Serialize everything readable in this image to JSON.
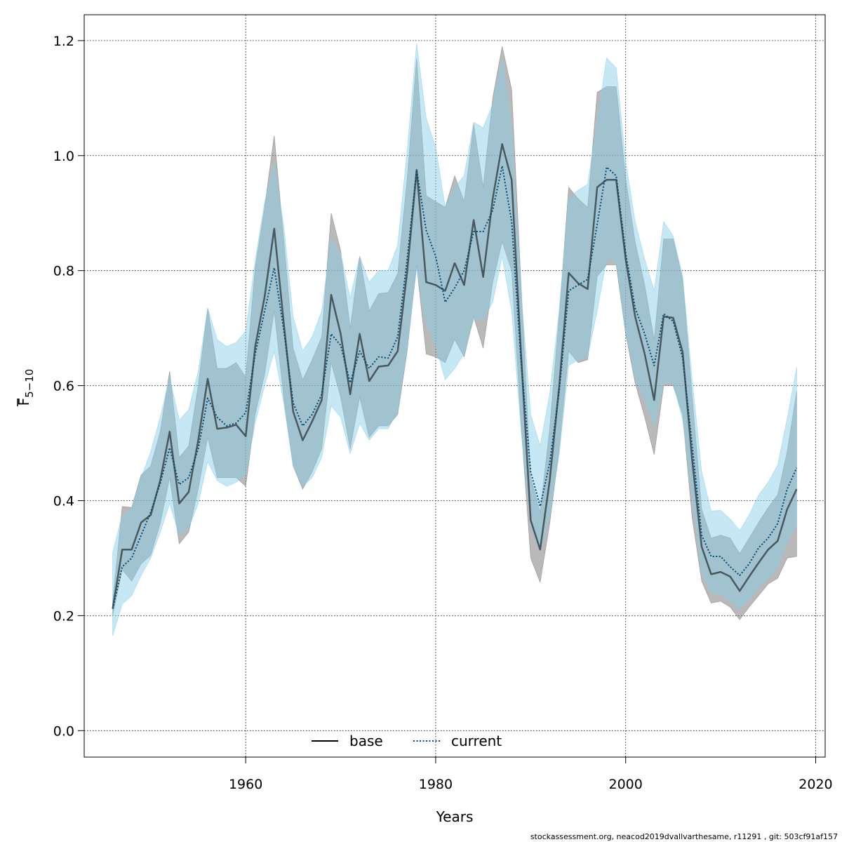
{
  "chart_data": {
    "type": "area",
    "xlabel": "Years",
    "ylabel": "F",
    "ylabel_subscript": "5−10",
    "xlim": [
      1943,
      2021
    ],
    "ylim": [
      -0.046,
      1.245
    ],
    "x_ticks": [
      1960,
      1980,
      2000,
      2020
    ],
    "y_ticks": [
      0.0,
      0.2,
      0.4,
      0.6,
      0.8,
      1.0,
      1.2
    ],
    "x_tick_labels": [
      "1960",
      "1980",
      "2000",
      "2020"
    ],
    "y_tick_labels": [
      "0.0",
      "0.2",
      "0.4",
      "0.6",
      "0.8",
      "1.0",
      "1.2"
    ],
    "grid": true,
    "legend_position": "bottom-center",
    "x": [
      1946,
      1947,
      1948,
      1949,
      1950,
      1951,
      1952,
      1953,
      1954,
      1955,
      1956,
      1957,
      1958,
      1959,
      1960,
      1961,
      1962,
      1963,
      1964,
      1965,
      1966,
      1967,
      1968,
      1969,
      1970,
      1971,
      1972,
      1973,
      1974,
      1975,
      1976,
      1977,
      1978,
      1979,
      1980,
      1981,
      1982,
      1983,
      1984,
      1985,
      1986,
      1987,
      1988,
      1989,
      1990,
      1991,
      1992,
      1993,
      1994,
      1995,
      1996,
      1997,
      1998,
      1999,
      2000,
      2001,
      2002,
      2003,
      2004,
      2005,
      2006,
      2007,
      2008,
      2009,
      2010,
      2011,
      2012,
      2013,
      2014,
      2015,
      2016,
      2017,
      2018
    ],
    "series": [
      {
        "name": "base",
        "line_color": "#000000",
        "band_color": "#808080",
        "line_style": "solid",
        "values": [
          0.212,
          0.315,
          0.315,
          0.362,
          0.375,
          0.435,
          0.52,
          0.395,
          0.415,
          0.505,
          0.612,
          0.525,
          0.527,
          0.532,
          0.512,
          0.668,
          0.755,
          0.873,
          0.71,
          0.555,
          0.505,
          0.538,
          0.575,
          0.758,
          0.69,
          0.585,
          0.69,
          0.608,
          0.633,
          0.635,
          0.66,
          0.798,
          0.975,
          0.78,
          0.775,
          0.765,
          0.813,
          0.775,
          0.888,
          0.789,
          0.925,
          1.02,
          0.958,
          0.65,
          0.366,
          0.315,
          0.435,
          0.598,
          0.796,
          0.778,
          0.768,
          0.945,
          0.958,
          0.958,
          0.82,
          0.72,
          0.655,
          0.575,
          0.72,
          0.718,
          0.658,
          0.47,
          0.32,
          0.272,
          0.276,
          0.268,
          0.243,
          0.268,
          0.292,
          0.315,
          0.33,
          0.385,
          0.42
        ],
        "lower": [
          0.2,
          0.28,
          0.26,
          0.29,
          0.305,
          0.36,
          0.44,
          0.325,
          0.345,
          0.42,
          0.51,
          0.44,
          0.44,
          0.44,
          0.425,
          0.55,
          0.62,
          0.73,
          0.58,
          0.46,
          0.42,
          0.45,
          0.49,
          0.64,
          0.58,
          0.49,
          0.58,
          0.51,
          0.53,
          0.53,
          0.55,
          0.66,
          0.81,
          0.655,
          0.65,
          0.64,
          0.68,
          0.65,
          0.72,
          0.665,
          0.78,
          0.85,
          0.8,
          0.53,
          0.3,
          0.258,
          0.36,
          0.49,
          0.66,
          0.64,
          0.645,
          0.79,
          0.81,
          0.81,
          0.69,
          0.605,
          0.545,
          0.48,
          0.6,
          0.6,
          0.55,
          0.37,
          0.26,
          0.222,
          0.225,
          0.215,
          0.193,
          0.215,
          0.235,
          0.255,
          0.265,
          0.3,
          0.303
        ],
        "upper": [
          0.225,
          0.39,
          0.388,
          0.445,
          0.46,
          0.52,
          0.625,
          0.475,
          0.495,
          0.6,
          0.735,
          0.63,
          0.63,
          0.64,
          0.615,
          0.805,
          0.91,
          1.035,
          0.855,
          0.665,
          0.61,
          0.645,
          0.685,
          0.9,
          0.835,
          0.7,
          0.825,
          0.73,
          0.76,
          0.762,
          0.795,
          0.96,
          1.17,
          0.93,
          0.92,
          0.91,
          0.965,
          0.92,
          1.055,
          0.945,
          1.1,
          1.19,
          1.115,
          0.77,
          0.44,
          0.38,
          0.525,
          0.72,
          0.945,
          0.925,
          0.91,
          1.11,
          1.12,
          1.12,
          0.96,
          0.85,
          0.775,
          0.68,
          0.855,
          0.855,
          0.785,
          0.58,
          0.385,
          0.335,
          0.34,
          0.335,
          0.308,
          0.335,
          0.362,
          0.388,
          0.41,
          0.485,
          0.59
        ]
      },
      {
        "name": "current",
        "line_color": "#004a75",
        "band_color": "#87ceeb",
        "line_style": "dotted",
        "values": [
          0.212,
          0.285,
          0.3,
          0.34,
          0.38,
          0.43,
          0.492,
          0.428,
          0.44,
          0.49,
          0.578,
          0.545,
          0.53,
          0.535,
          0.553,
          0.655,
          0.73,
          0.805,
          0.698,
          0.57,
          0.53,
          0.55,
          0.585,
          0.69,
          0.67,
          0.605,
          0.66,
          0.63,
          0.65,
          0.648,
          0.685,
          0.82,
          0.975,
          0.87,
          0.825,
          0.745,
          0.77,
          0.8,
          0.868,
          0.868,
          0.905,
          0.982,
          0.885,
          0.64,
          0.45,
          0.39,
          0.465,
          0.59,
          0.765,
          0.775,
          0.785,
          0.88,
          0.98,
          0.965,
          0.83,
          0.735,
          0.69,
          0.635,
          0.725,
          0.712,
          0.648,
          0.495,
          0.34,
          0.303,
          0.303,
          0.285,
          0.27,
          0.29,
          0.318,
          0.335,
          0.36,
          0.42,
          0.457
        ],
        "lower": [
          0.165,
          0.22,
          0.235,
          0.27,
          0.3,
          0.345,
          0.395,
          0.34,
          0.352,
          0.395,
          0.468,
          0.435,
          0.425,
          0.432,
          0.445,
          0.535,
          0.6,
          0.66,
          0.57,
          0.46,
          0.425,
          0.44,
          0.475,
          0.565,
          0.545,
          0.482,
          0.535,
          0.505,
          0.525,
          0.525,
          0.555,
          0.665,
          0.805,
          0.71,
          0.67,
          0.61,
          0.63,
          0.655,
          0.715,
          0.715,
          0.745,
          0.825,
          0.73,
          0.52,
          0.36,
          0.31,
          0.375,
          0.48,
          0.635,
          0.645,
          0.65,
          0.73,
          0.82,
          0.815,
          0.695,
          0.615,
          0.575,
          0.528,
          0.605,
          0.605,
          0.54,
          0.41,
          0.275,
          0.24,
          0.238,
          0.225,
          0.212,
          0.228,
          0.25,
          0.265,
          0.285,
          0.33,
          0.355
        ],
        "upper": [
          0.31,
          0.375,
          0.385,
          0.44,
          0.485,
          0.545,
          0.615,
          0.54,
          0.558,
          0.625,
          0.735,
          0.68,
          0.668,
          0.675,
          0.695,
          0.818,
          0.92,
          0.985,
          0.878,
          0.72,
          0.66,
          0.685,
          0.73,
          0.855,
          0.83,
          0.752,
          0.825,
          0.78,
          0.8,
          0.8,
          0.845,
          1.01,
          1.195,
          1.065,
          1.015,
          0.91,
          0.945,
          0.965,
          1.058,
          1.048,
          1.09,
          1.17,
          1.045,
          0.76,
          0.55,
          0.495,
          0.585,
          0.73,
          0.925,
          0.94,
          0.95,
          1.06,
          1.17,
          1.152,
          0.99,
          0.885,
          0.82,
          0.765,
          0.885,
          0.86,
          0.79,
          0.61,
          0.45,
          0.382,
          0.383,
          0.368,
          0.348,
          0.375,
          0.41,
          0.432,
          0.462,
          0.542,
          0.632
        ]
      }
    ]
  },
  "footer_text": "stockassessment.org, neacod2019dvallvarthesame, r11291 , git: 503cf91af157"
}
